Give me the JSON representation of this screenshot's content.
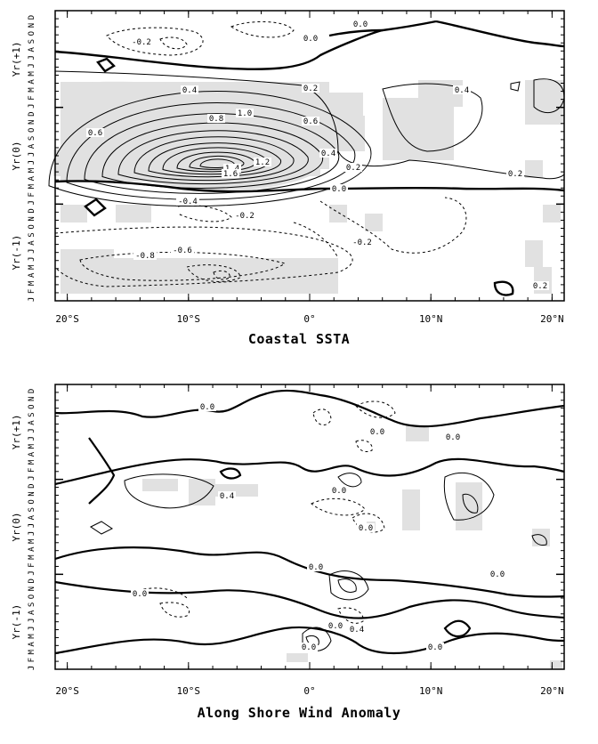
{
  "chart_data": [
    {
      "type": "contour",
      "title": "Coastal SSTA",
      "x_ticks": [
        "20°S",
        "10°S",
        "0°",
        "10°N",
        "20°N"
      ],
      "x_tick_values": [
        -20,
        -10,
        0,
        10,
        20
      ],
      "xlim": [
        -21,
        21
      ],
      "y_year_labels": [
        "Yr(-1)",
        "Yr(0)",
        "Yr(+1)"
      ],
      "y_month_letters": "JFMAMJJASOND",
      "contour_interval": 0.2,
      "shading": "values above 0.4 shaded light gray",
      "contour_labels": [
        "-0.2",
        "0.0",
        "0.0",
        "0.4",
        "0.2",
        "0.4",
        "1.0",
        "0.8",
        "0.6",
        "0.6",
        "1.2",
        "1.4",
        "1.6",
        "0.4",
        "0.2",
        "0.0",
        "0.2",
        "-0.2",
        "-0.4",
        "-0.2",
        "-0.8",
        "-0.6",
        "0.2"
      ],
      "grid": false
    },
    {
      "type": "contour",
      "title": "Along Shore Wind Anomaly",
      "x_ticks": [
        "20°S",
        "10°S",
        "0°",
        "10°N",
        "20°N"
      ],
      "x_tick_values": [
        -20,
        -10,
        0,
        10,
        20
      ],
      "xlim": [
        -21,
        21
      ],
      "y_year_labels": [
        "Yr(-1)",
        "Yr(0)",
        "Yr(+1)"
      ],
      "y_month_letters": "JFMAMJJASOND",
      "shading": "positive anomalies shaded light gray",
      "contour_labels": [
        "0.0",
        "0.0",
        "0.0",
        "0.4",
        "0.0",
        "0.0",
        "0.0",
        "0.0",
        "0.0",
        "0.0",
        "0.0",
        "0.4",
        "0.0"
      ],
      "grid": false
    }
  ]
}
